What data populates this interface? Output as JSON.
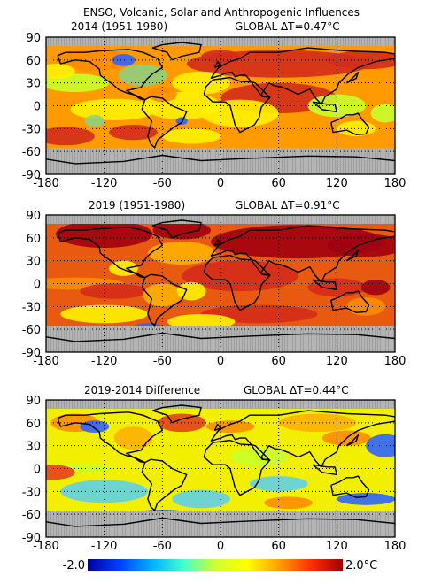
{
  "figure": {
    "super_title": "ENSO, Volcanic, Solar and Anthropogenic Influences"
  },
  "axes": {
    "lat_ticks": [
      "90",
      "60",
      "30",
      "0",
      "-30",
      "-60",
      "-90"
    ],
    "lon_ticks": [
      "-180",
      "-120",
      "-60",
      "0",
      "60",
      "120",
      "180"
    ]
  },
  "panels": [
    {
      "title_left": "2014 (1951-1980)",
      "title_right": "GLOBAL ΔT=0.47°C",
      "mean_anomaly_c": 0.47,
      "pattern": "2014",
      "colors": [
        "#d42c1a",
        "#fff200",
        "#ff8c00",
        "#c9ff2a",
        "#e05a10",
        "#8fd080",
        "#2f65ff"
      ]
    },
    {
      "title_left": "2019 (1951-1980)",
      "title_right": "GLOBAL ΔT=0.91°C",
      "mean_anomaly_c": 0.91,
      "pattern": "2019",
      "colors": [
        "#a00010",
        "#d42c1a",
        "#ff8c00",
        "#e05a10",
        "#ffb000",
        "#fff200",
        "#2f65ff"
      ]
    },
    {
      "title_left": "2019-2014 Difference",
      "title_right": "GLOBAL ΔT=0.44°C",
      "mean_anomaly_c": 0.44,
      "pattern": "diff",
      "colors": [
        "#fff200",
        "#c9ff2a",
        "#ff8c00",
        "#5fd0e8",
        "#ffb000",
        "#2f65ff",
        "#e8401a"
      ]
    }
  ],
  "colorbar": {
    "min_label": "-2.0",
    "max_label": "2.0°C",
    "stops": [
      "#0000a0",
      "#0040ff",
      "#00b0ff",
      "#40ffd0",
      "#d0ff30",
      "#ffff00",
      "#ffa000",
      "#ff3000",
      "#a00000"
    ]
  }
}
